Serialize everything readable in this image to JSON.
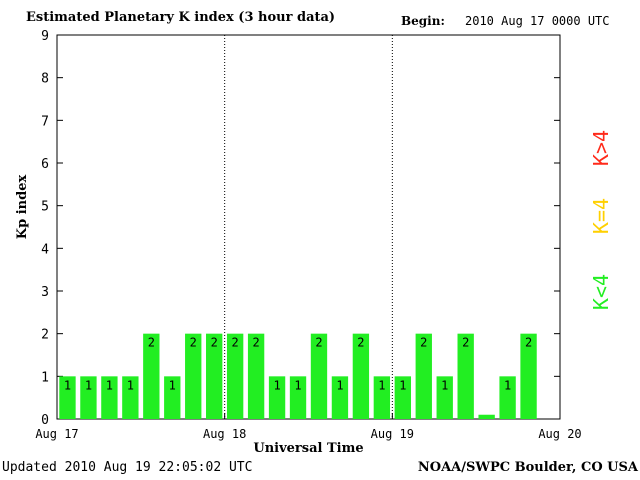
{
  "header": {
    "title": "Estimated Planetary K index (3 hour data)",
    "begin_label": "Begin:",
    "begin_value": "2010 Aug 17 0000 UTC"
  },
  "footer": {
    "updated": "Updated 2010 Aug 19 22:05:02 UTC",
    "source": "NOAA/SWPC Boulder, CO USA"
  },
  "legend": [
    {
      "text": "K>4",
      "color": "#ff2a1a"
    },
    {
      "text": "K=4",
      "color": "#ffd000"
    },
    {
      "text": "K<4",
      "color": "#22ee22"
    }
  ],
  "chart_data": {
    "type": "bar",
    "title": "Estimated Planetary K index (3 hour data)",
    "xlabel": "Universal Time",
    "ylabel": "Kp index",
    "ylim": [
      0,
      9
    ],
    "yticks": [
      "0",
      "1",
      "2",
      "3",
      "4",
      "5",
      "6",
      "7",
      "8",
      "9"
    ],
    "xticks": [
      "Aug 17",
      "Aug 18",
      "Aug 19",
      "Aug 20"
    ],
    "bars_per_day": 8,
    "values": [
      1,
      1,
      1,
      1,
      2,
      1,
      2,
      2,
      2,
      2,
      1,
      1,
      2,
      1,
      2,
      1,
      1,
      2,
      1,
      2,
      0.1,
      1,
      2
    ],
    "value_labels": [
      "1",
      "1",
      "1",
      "1",
      "2",
      "1",
      "2",
      "2",
      "2",
      "2",
      "1",
      "1",
      "2",
      "1",
      "2",
      "1",
      "1",
      "2",
      "1",
      "2",
      "",
      "1",
      "2"
    ],
    "bar_color": "#22ee22",
    "day_dividers": "dotted"
  }
}
